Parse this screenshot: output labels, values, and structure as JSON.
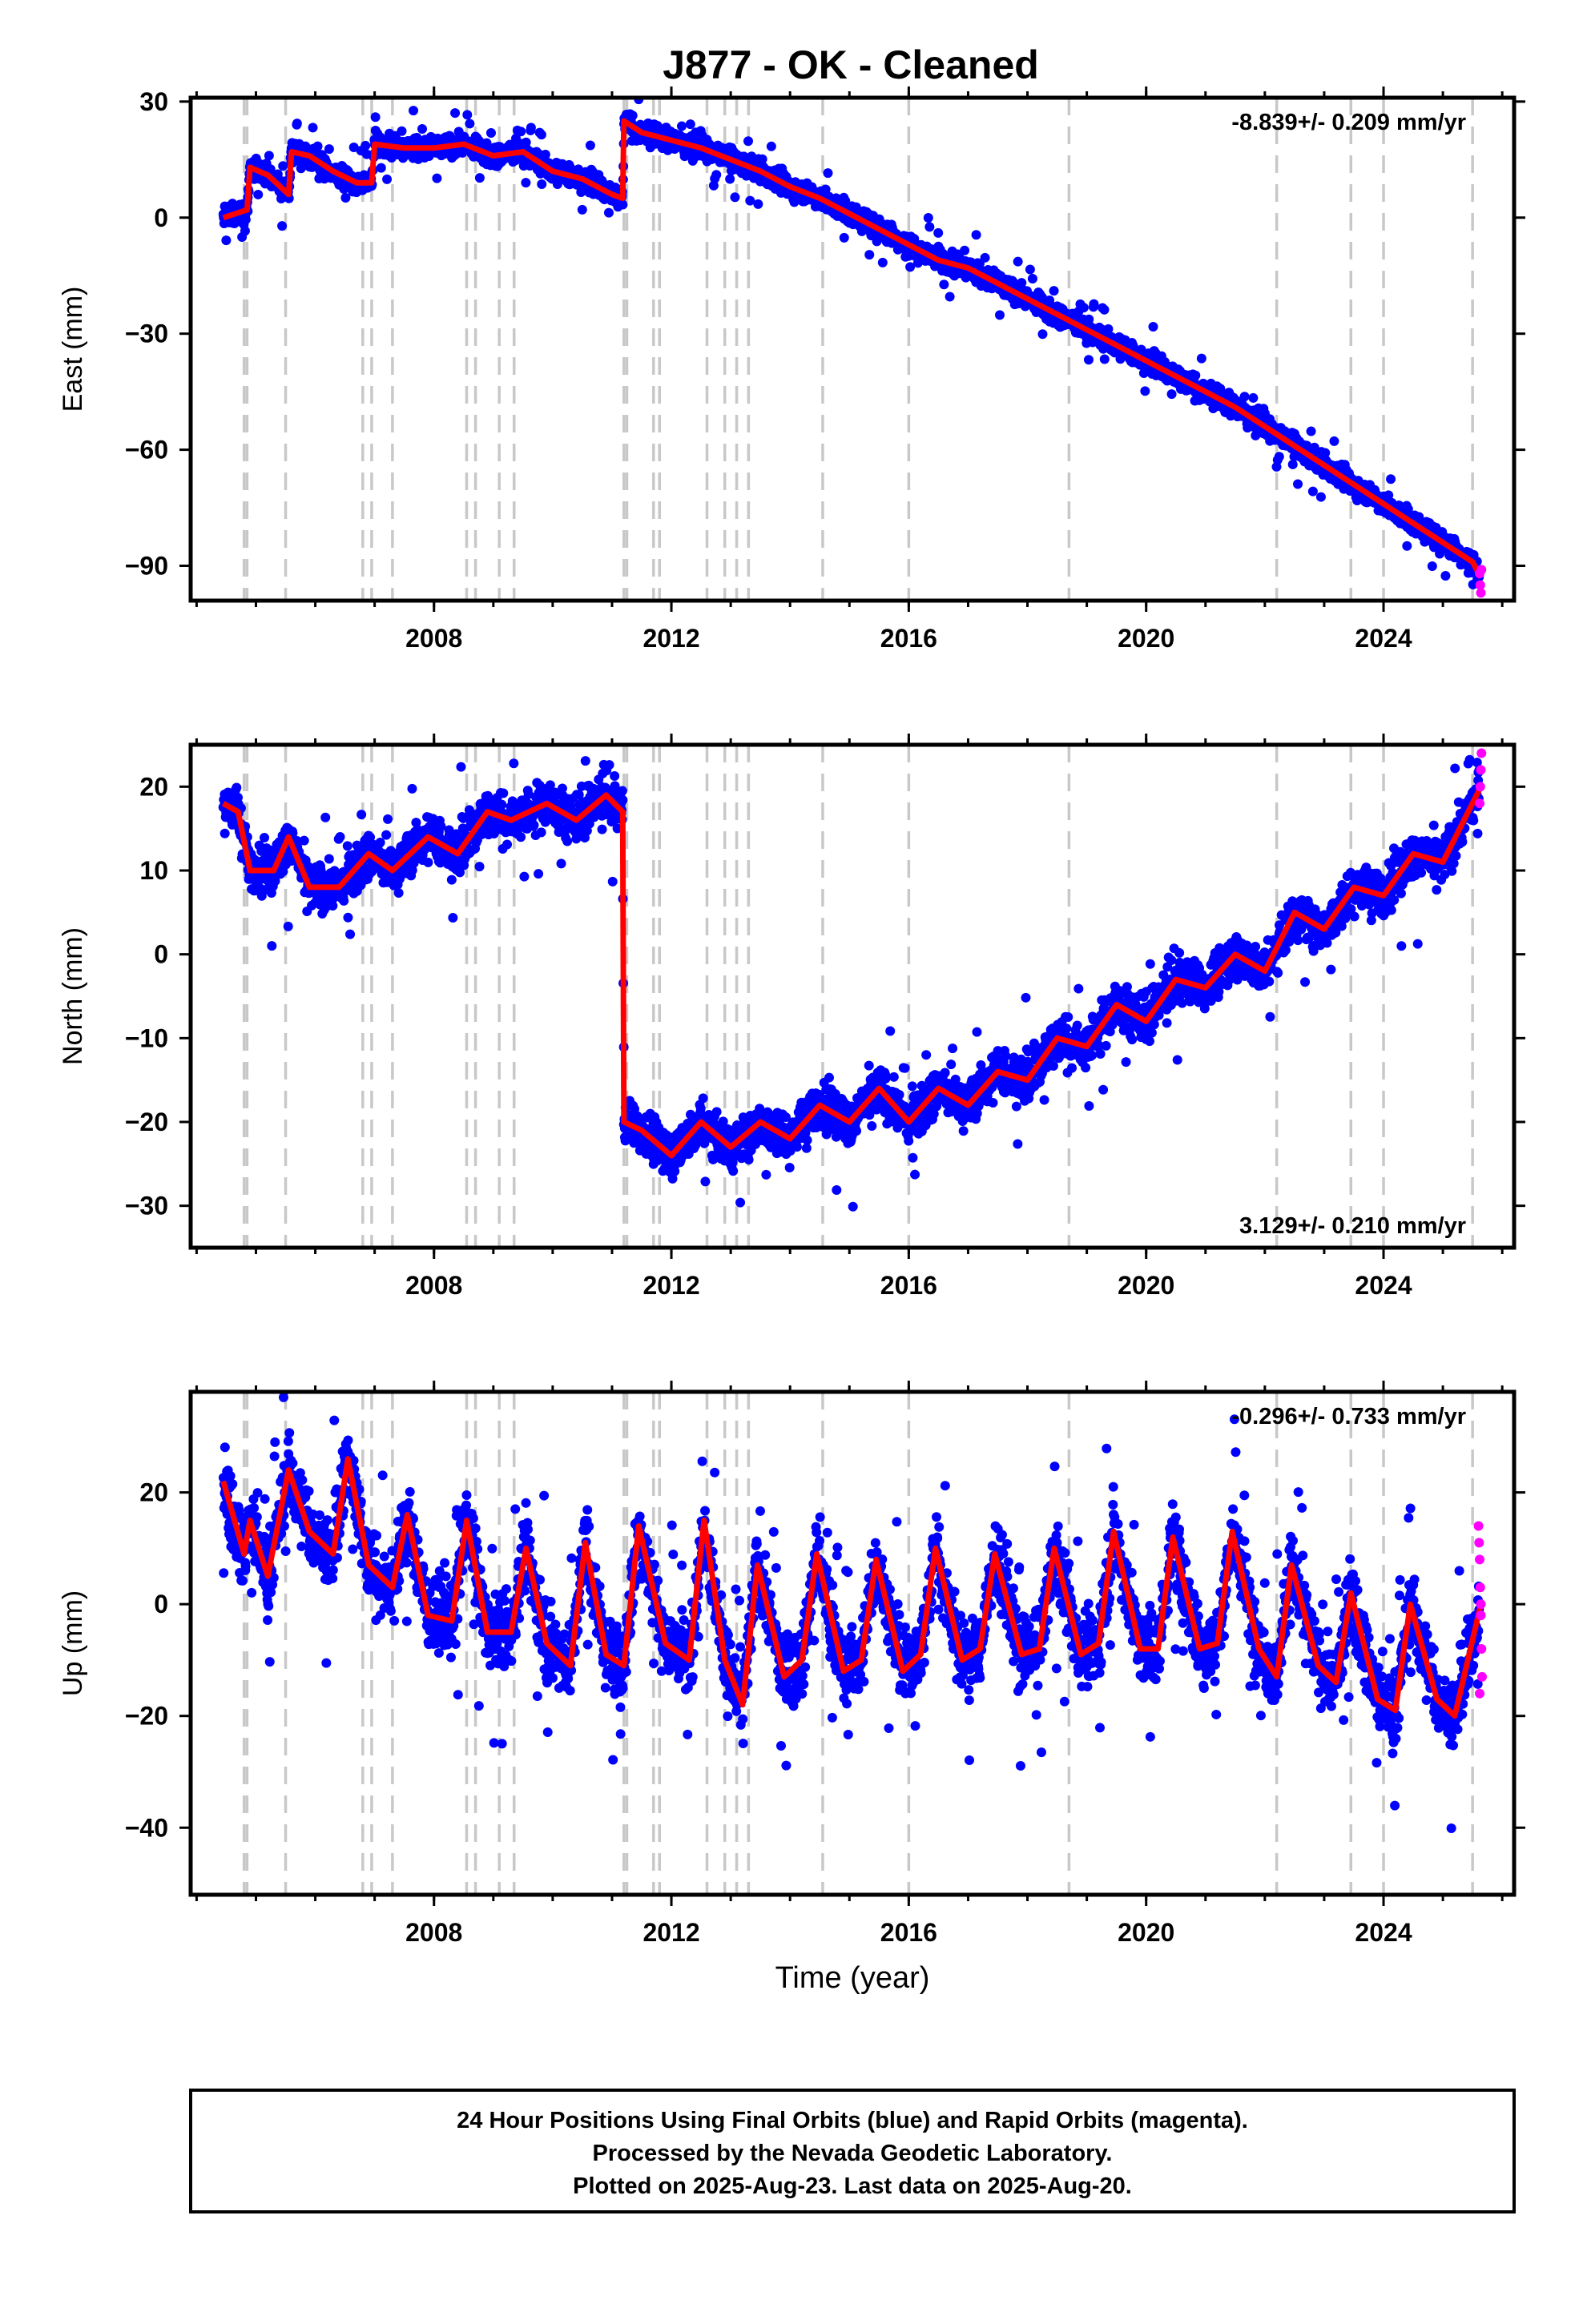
{
  "title": "J877  - OK - Cleaned",
  "footer": {
    "line1": "24 Hour Positions Using Final Orbits (blue) and Rapid Orbits (magenta).",
    "line2": "Processed by the Nevada Geodetic Laboratory.",
    "line3": "Plotted on 2025-Aug-23. Last data on 2025-Aug-20."
  },
  "colors": {
    "final": "#0000ff",
    "rapid": "#ff00ff",
    "model": "#ff0000",
    "events": "#c8c8c8"
  },
  "chart_data": [
    {
      "type": "scatter",
      "component": "East",
      "ylabel": "East (mm)",
      "xlabel": "",
      "rate_label": "-8.839+/- 0.209 mm/yr",
      "rate_position": "top-right",
      "xlim": [
        2003.9,
        2026.2
      ],
      "ylim": [
        -99,
        31
      ],
      "x_ticks": [
        2008,
        2012,
        2016,
        2020,
        2024
      ],
      "x_tick_labels": [
        "2008",
        "2012",
        "2016",
        "2020",
        "2024"
      ],
      "y_ticks": [
        30,
        0,
        -30,
        -60,
        -90
      ],
      "y_tick_labels": [
        "30",
        "0",
        "−30",
        "−60",
        "−90"
      ],
      "events": [
        2004.8,
        2004.85,
        2005.5,
        2006.8,
        2006.95,
        2007.3,
        2008.55,
        2008.7,
        2009.1,
        2009.35,
        2011.2,
        2011.25,
        2011.7,
        2011.8,
        2012.6,
        2012.9,
        2013.1,
        2013.3,
        2014.55,
        2016.0,
        2018.7,
        2022.2,
        2023.45,
        2024.0,
        2025.5
      ],
      "model": {
        "x": [
          2004.45,
          2004.85,
          2004.9,
          2005.2,
          2005.55,
          2005.6,
          2005.9,
          2006.3,
          2006.7,
          2006.95,
          2007.0,
          2007.5,
          2008.0,
          2008.5,
          2009.0,
          2009.5,
          2010.0,
          2010.5,
          2011.0,
          2011.18,
          2011.2,
          2011.5,
          2012.0,
          2012.5,
          2013.0,
          2013.5,
          2014.0,
          2014.5,
          2015.0,
          2015.5,
          2016.0,
          2016.5,
          2017.0,
          2017.5,
          2018.0,
          2018.5,
          2019.0,
          2019.5,
          2020.0,
          2020.5,
          2021.0,
          2021.5,
          2022.0,
          2022.5,
          2023.0,
          2023.5,
          2024.0,
          2024.5,
          2025.0,
          2025.5,
          2025.64
        ],
        "y": [
          0,
          2,
          13,
          11,
          6,
          17,
          16,
          12,
          9,
          9,
          19,
          18,
          18,
          19,
          16,
          17,
          12,
          10,
          6,
          5,
          25,
          22,
          20,
          18,
          15,
          12,
          8,
          5,
          1,
          -3,
          -7,
          -11,
          -13,
          -17,
          -21,
          -25,
          -29,
          -33,
          -37,
          -41,
          -45,
          -49,
          -54,
          -59,
          -64,
          -69,
          -74,
          -79,
          -84,
          -89,
          -93
        ]
      },
      "rapid": {
        "x": [
          2025.62,
          2025.63,
          2025.64,
          2025.65
        ],
        "y": [
          -92,
          -95,
          -97,
          -91
        ]
      },
      "scatter_half_width": 3.5,
      "outlier_prob": 0.03
    },
    {
      "type": "scatter",
      "component": "North",
      "ylabel": "North (mm)",
      "xlabel": "",
      "rate_label": "3.129+/- 0.210 mm/yr",
      "rate_position": "bottom-right",
      "xlim": [
        2003.9,
        2026.2
      ],
      "ylim": [
        -35,
        25
      ],
      "x_ticks": [
        2008,
        2012,
        2016,
        2020,
        2024
      ],
      "x_tick_labels": [
        "2008",
        "2012",
        "2016",
        "2020",
        "2024"
      ],
      "y_ticks": [
        20,
        10,
        0,
        -10,
        -20,
        -30
      ],
      "y_tick_labels": [
        "20",
        "10",
        "0",
        "−10",
        "−20",
        "−30"
      ],
      "events": [
        2004.8,
        2004.85,
        2005.5,
        2006.8,
        2006.95,
        2007.3,
        2008.55,
        2008.7,
        2009.1,
        2009.35,
        2011.2,
        2011.25,
        2011.7,
        2011.8,
        2012.6,
        2012.9,
        2013.1,
        2013.3,
        2014.55,
        2016.0,
        2018.7,
        2022.2,
        2023.45,
        2024.0,
        2025.5
      ],
      "model": {
        "x": [
          2004.45,
          2004.7,
          2004.9,
          2005.3,
          2005.55,
          2005.9,
          2006.4,
          2006.9,
          2007.3,
          2007.9,
          2008.4,
          2008.9,
          2009.3,
          2009.9,
          2010.4,
          2010.9,
          2011.18,
          2011.2,
          2011.5,
          2012.0,
          2012.5,
          2013.0,
          2013.5,
          2014.0,
          2014.5,
          2015.0,
          2015.5,
          2016.0,
          2016.5,
          2017.0,
          2017.5,
          2018.0,
          2018.5,
          2019.0,
          2019.5,
          2020.0,
          2020.5,
          2021.0,
          2021.5,
          2022.0,
          2022.5,
          2023.0,
          2023.5,
          2024.0,
          2024.5,
          2025.0,
          2025.64
        ],
        "y": [
          18,
          17,
          10,
          10,
          14,
          8,
          8,
          12,
          10,
          14,
          12,
          17,
          16,
          18,
          16,
          19,
          17,
          -20,
          -21,
          -24,
          -20,
          -23,
          -20,
          -22,
          -18,
          -20,
          -16,
          -20,
          -16,
          -18,
          -14,
          -15,
          -10,
          -11,
          -6,
          -8,
          -3,
          -4,
          0,
          -2,
          5,
          3,
          8,
          7,
          12,
          11,
          20
        ]
      },
      "rapid": {
        "x": [
          2025.62,
          2025.63,
          2025.64,
          2025.65
        ],
        "y": [
          18,
          20,
          22,
          24
        ]
      },
      "scatter_half_width": 3.5,
      "outlier_prob": 0.02
    },
    {
      "type": "scatter",
      "component": "Up",
      "ylabel": "Up (mm)",
      "xlabel": "Time (year)",
      "rate_label": "-0.296+/- 0.733 mm/yr",
      "rate_position": "top-right",
      "xlim": [
        2003.9,
        2026.2
      ],
      "ylim": [
        -52,
        38
      ],
      "x_ticks": [
        2008,
        2012,
        2016,
        2020,
        2024
      ],
      "x_tick_labels": [
        "2008",
        "2012",
        "2016",
        "2020",
        "2024"
      ],
      "y_ticks": [
        20,
        0,
        -20,
        -40
      ],
      "y_tick_labels": [
        "20",
        "0",
        "−20",
        "−40"
      ],
      "events": [
        2004.8,
        2004.85,
        2005.5,
        2006.8,
        2006.95,
        2007.3,
        2008.55,
        2008.7,
        2009.1,
        2009.35,
        2011.2,
        2011.25,
        2011.7,
        2011.8,
        2012.6,
        2012.9,
        2013.1,
        2013.3,
        2014.55,
        2016.0,
        2018.7,
        2022.2,
        2023.45,
        2024.0,
        2025.5
      ],
      "model": {
        "x": [
          2004.45,
          2004.8,
          2004.9,
          2005.2,
          2005.55,
          2005.9,
          2006.3,
          2006.55,
          2006.9,
          2007.3,
          2007.55,
          2007.9,
          2008.3,
          2008.55,
          2008.9,
          2009.3,
          2009.55,
          2009.9,
          2010.3,
          2010.55,
          2010.9,
          2011.2,
          2011.45,
          2011.9,
          2012.3,
          2012.55,
          2012.9,
          2013.2,
          2013.45,
          2013.9,
          2014.2,
          2014.45,
          2014.9,
          2015.2,
          2015.45,
          2015.9,
          2016.2,
          2016.45,
          2016.9,
          2017.2,
          2017.45,
          2017.9,
          2018.2,
          2018.45,
          2018.9,
          2019.2,
          2019.45,
          2019.9,
          2020.2,
          2020.45,
          2020.9,
          2021.2,
          2021.45,
          2021.9,
          2022.2,
          2022.45,
          2022.9,
          2023.2,
          2023.45,
          2023.9,
          2024.2,
          2024.45,
          2024.9,
          2025.2,
          2025.64
        ],
        "y": [
          22,
          9,
          15,
          5,
          24,
          13,
          9,
          26,
          7,
          3,
          16,
          -2,
          -3,
          15,
          -5,
          -5,
          10,
          -7,
          -11,
          11,
          -9,
          -11,
          14,
          -7,
          -10,
          15,
          -10,
          -18,
          7,
          -13,
          -10,
          9,
          -12,
          -10,
          8,
          -12,
          -9,
          10,
          -10,
          -8,
          9,
          -9,
          -8,
          10,
          -9,
          -7,
          13,
          -8,
          -8,
          12,
          -8,
          -7,
          13,
          -8,
          -13,
          7,
          -11,
          -14,
          2,
          -17,
          -19,
          0,
          -17,
          -20,
          0
        ]
      },
      "rapid": {
        "x": [
          2025.6,
          2025.61,
          2025.62,
          2025.63,
          2025.64,
          2025.65,
          2025.66,
          2025.62,
          2025.64
        ],
        "y": [
          14,
          11,
          8,
          3,
          -2,
          -8,
          -13,
          -16,
          0
        ]
      },
      "scatter_half_width": 8,
      "outlier_prob": 0.04
    }
  ]
}
